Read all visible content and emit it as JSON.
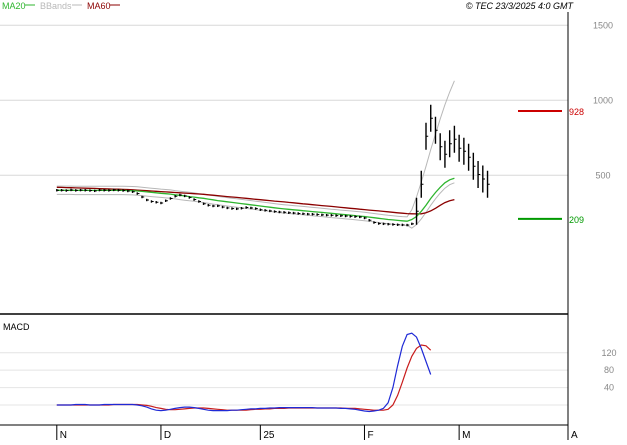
{
  "legend": [
    {
      "label": "MA20",
      "color": "#2fb52f"
    },
    {
      "label": "BBands",
      "color": "#b8b8b8"
    },
    {
      "label": "MA60",
      "color": "#8b0000"
    }
  ],
  "copyright": "© TEC 23/3/2025 4:0 GMT",
  "macd_label": "MACD",
  "colors": {
    "price": "#000000",
    "ma20": "#2fb52f",
    "ma60": "#8b0000",
    "bbands": "#b8b8b8",
    "resistance": "#cc0000",
    "support": "#009900",
    "macd": "#1f2ad6",
    "signal": "#c81c1c",
    "grid": "#d8d8d8"
  },
  "chart_data": [
    {
      "type": "line",
      "panel": "price",
      "y_ticks": [
        {
          "label": "1500",
          "value": 1500
        },
        {
          "label": "1000",
          "value": 1000
        },
        {
          "label": "500",
          "value": 500
        }
      ],
      "ylim": [
        -425,
        1575
      ],
      "x_ticks": [
        {
          "label": "N",
          "index": 0
        },
        {
          "label": "D",
          "index": 22
        },
        {
          "label": "25",
          "index": 43
        },
        {
          "label": "F",
          "index": 65
        },
        {
          "label": "M",
          "index": 85
        },
        {
          "label": "A",
          "index": 108
        }
      ],
      "xlim": [
        -12,
        108
      ],
      "levels": [
        {
          "name": "resistance",
          "label": "928",
          "value": 928
        },
        {
          "name": "support",
          "label": "209",
          "value": 209
        }
      ],
      "series": [
        {
          "key": "close",
          "style": "bars",
          "values": [
            400,
            400,
            398,
            402,
            399,
            401,
            400,
            398,
            396,
            401,
            400,
            399,
            402,
            400,
            398,
            395,
            390,
            378,
            355,
            335,
            325,
            320,
            315,
            330,
            345,
            360,
            368,
            362,
            352,
            338,
            325,
            310,
            300,
            295,
            296,
            288,
            282,
            278,
            276,
            280,
            285,
            282,
            278,
            270,
            266,
            262,
            258,
            255,
            253,
            250,
            248,
            245,
            243,
            241,
            240,
            238,
            236,
            234,
            233,
            231,
            230,
            228,
            226,
            224,
            222,
            215,
            200,
            185,
            178,
            176,
            174,
            172,
            170,
            169,
            168,
            176,
            260,
            440,
            760,
            880,
            800,
            690,
            640,
            710,
            740,
            680,
            660,
            620,
            560,
            505,
            475,
            440
          ]
        },
        {
          "key": "ma20",
          "values": [
            400,
            400,
            400,
            400,
            399,
            399,
            399,
            399,
            399,
            399,
            399,
            399,
            399,
            399,
            399,
            398,
            397,
            395,
            392,
            389,
            386,
            383,
            380,
            377,
            374,
            370,
            366,
            362,
            358,
            354,
            350,
            346,
            341,
            336,
            331,
            327,
            323,
            319,
            315,
            311,
            307,
            303,
            299,
            295,
            291,
            287,
            283,
            279,
            276,
            273,
            270,
            267,
            264,
            261,
            258,
            255,
            252,
            249,
            246,
            243,
            240,
            237,
            234,
            231,
            228,
            225,
            221,
            217,
            213,
            209,
            205,
            202,
            199,
            196,
            194,
            205,
            225,
            260,
            300,
            345,
            385,
            420,
            450,
            470,
            480
          ]
        },
        {
          "key": "ma60",
          "values": [
            420,
            419,
            418,
            417,
            416,
            415,
            414,
            413,
            412,
            411,
            410,
            409,
            408,
            407,
            406,
            405,
            403,
            401,
            399,
            397,
            395,
            393,
            391,
            389,
            387,
            385,
            383,
            381,
            379,
            377,
            375,
            373,
            370,
            367,
            364,
            361,
            358,
            355,
            352,
            349,
            346,
            343,
            340,
            337,
            334,
            331,
            328,
            325,
            322,
            319,
            316,
            313,
            310,
            307,
            304,
            301,
            298,
            295,
            292,
            289,
            286,
            283,
            280,
            277,
            274,
            271,
            268,
            265,
            262,
            259,
            256,
            253,
            250,
            247,
            244,
            243,
            242,
            243,
            250,
            262,
            280,
            300,
            318,
            330,
            338
          ]
        }
      ]
    },
    {
      "type": "line",
      "panel": "macd",
      "y_ticks": [
        {
          "label": "120",
          "value": 120
        },
        {
          "label": "80",
          "value": 80
        },
        {
          "label": "40",
          "value": 40
        }
      ],
      "ylim": [
        -30,
        200
      ],
      "series": [
        {
          "key": "macd",
          "values": [
            0,
            0,
            0,
            0,
            1,
            1,
            1,
            0,
            0,
            0,
            1,
            1,
            1,
            1,
            1,
            1,
            1,
            0,
            -2,
            -5,
            -9,
            -12,
            -13,
            -12,
            -10,
            -8,
            -6,
            -5,
            -5,
            -6,
            -8,
            -10,
            -12,
            -13,
            -13,
            -13,
            -13,
            -12,
            -12,
            -11,
            -10,
            -9,
            -9,
            -8,
            -8,
            -7,
            -7,
            -6,
            -6,
            -6,
            -6,
            -6,
            -6,
            -6,
            -6,
            -7,
            -7,
            -7,
            -7,
            -7,
            -8,
            -8,
            -9,
            -10,
            -12,
            -14,
            -15,
            -14,
            -12,
            -8,
            5,
            40,
            90,
            135,
            162,
            165,
            156,
            130,
            100,
            70
          ]
        },
        {
          "key": "signal",
          "values": [
            0,
            0,
            0,
            0,
            0,
            0,
            0,
            0,
            0,
            0,
            0,
            0,
            1,
            1,
            1,
            1,
            1,
            1,
            0,
            -1,
            -3,
            -6,
            -8,
            -10,
            -11,
            -11,
            -10,
            -9,
            -8,
            -7,
            -7,
            -7,
            -8,
            -9,
            -10,
            -11,
            -12,
            -12,
            -12,
            -12,
            -12,
            -11,
            -10,
            -10,
            -9,
            -9,
            -8,
            -8,
            -8,
            -7,
            -7,
            -7,
            -7,
            -7,
            -7,
            -7,
            -7,
            -7,
            -7,
            -7,
            -7,
            -8,
            -8,
            -8,
            -9,
            -10,
            -11,
            -12,
            -12,
            -12,
            -10,
            0,
            22,
            52,
            85,
            112,
            130,
            138,
            136,
            126
          ]
        }
      ]
    }
  ]
}
